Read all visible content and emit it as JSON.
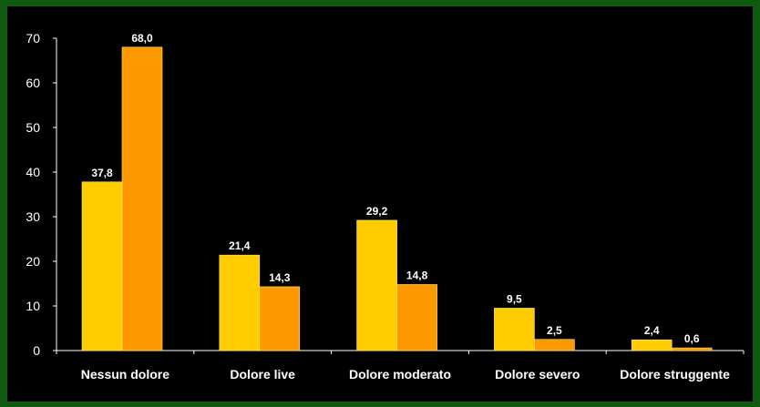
{
  "chart_data": {
    "type": "bar",
    "categories": [
      "Nessun dolore",
      "Dolore live",
      "Dolore moderato",
      "Dolore severo",
      "Dolore struggente"
    ],
    "series": [
      {
        "values": [
          37.8,
          21.4,
          29.2,
          9.5,
          2.4
        ],
        "labels": [
          "37,8",
          "21,4",
          "29,2",
          "9,5",
          "2,4"
        ],
        "color": "#FFCC00"
      },
      {
        "values": [
          68.0,
          14.3,
          14.8,
          2.5,
          0.6
        ],
        "labels": [
          "68,0",
          "14,3",
          "14,8",
          "2,5",
          "0,6"
        ],
        "color": "#FF9900"
      }
    ],
    "yticks": [
      "0",
      "10",
      "20",
      "30",
      "40",
      "50",
      "60",
      "70"
    ],
    "ylim": [
      0,
      70
    ],
    "grid": false,
    "legend": "none",
    "title": "",
    "xlabel": "",
    "ylabel": ""
  },
  "colors": {
    "background": "#000000",
    "border": "#0f5a0f",
    "text": "#FFFFFF",
    "axis": "#FFFFFF"
  }
}
